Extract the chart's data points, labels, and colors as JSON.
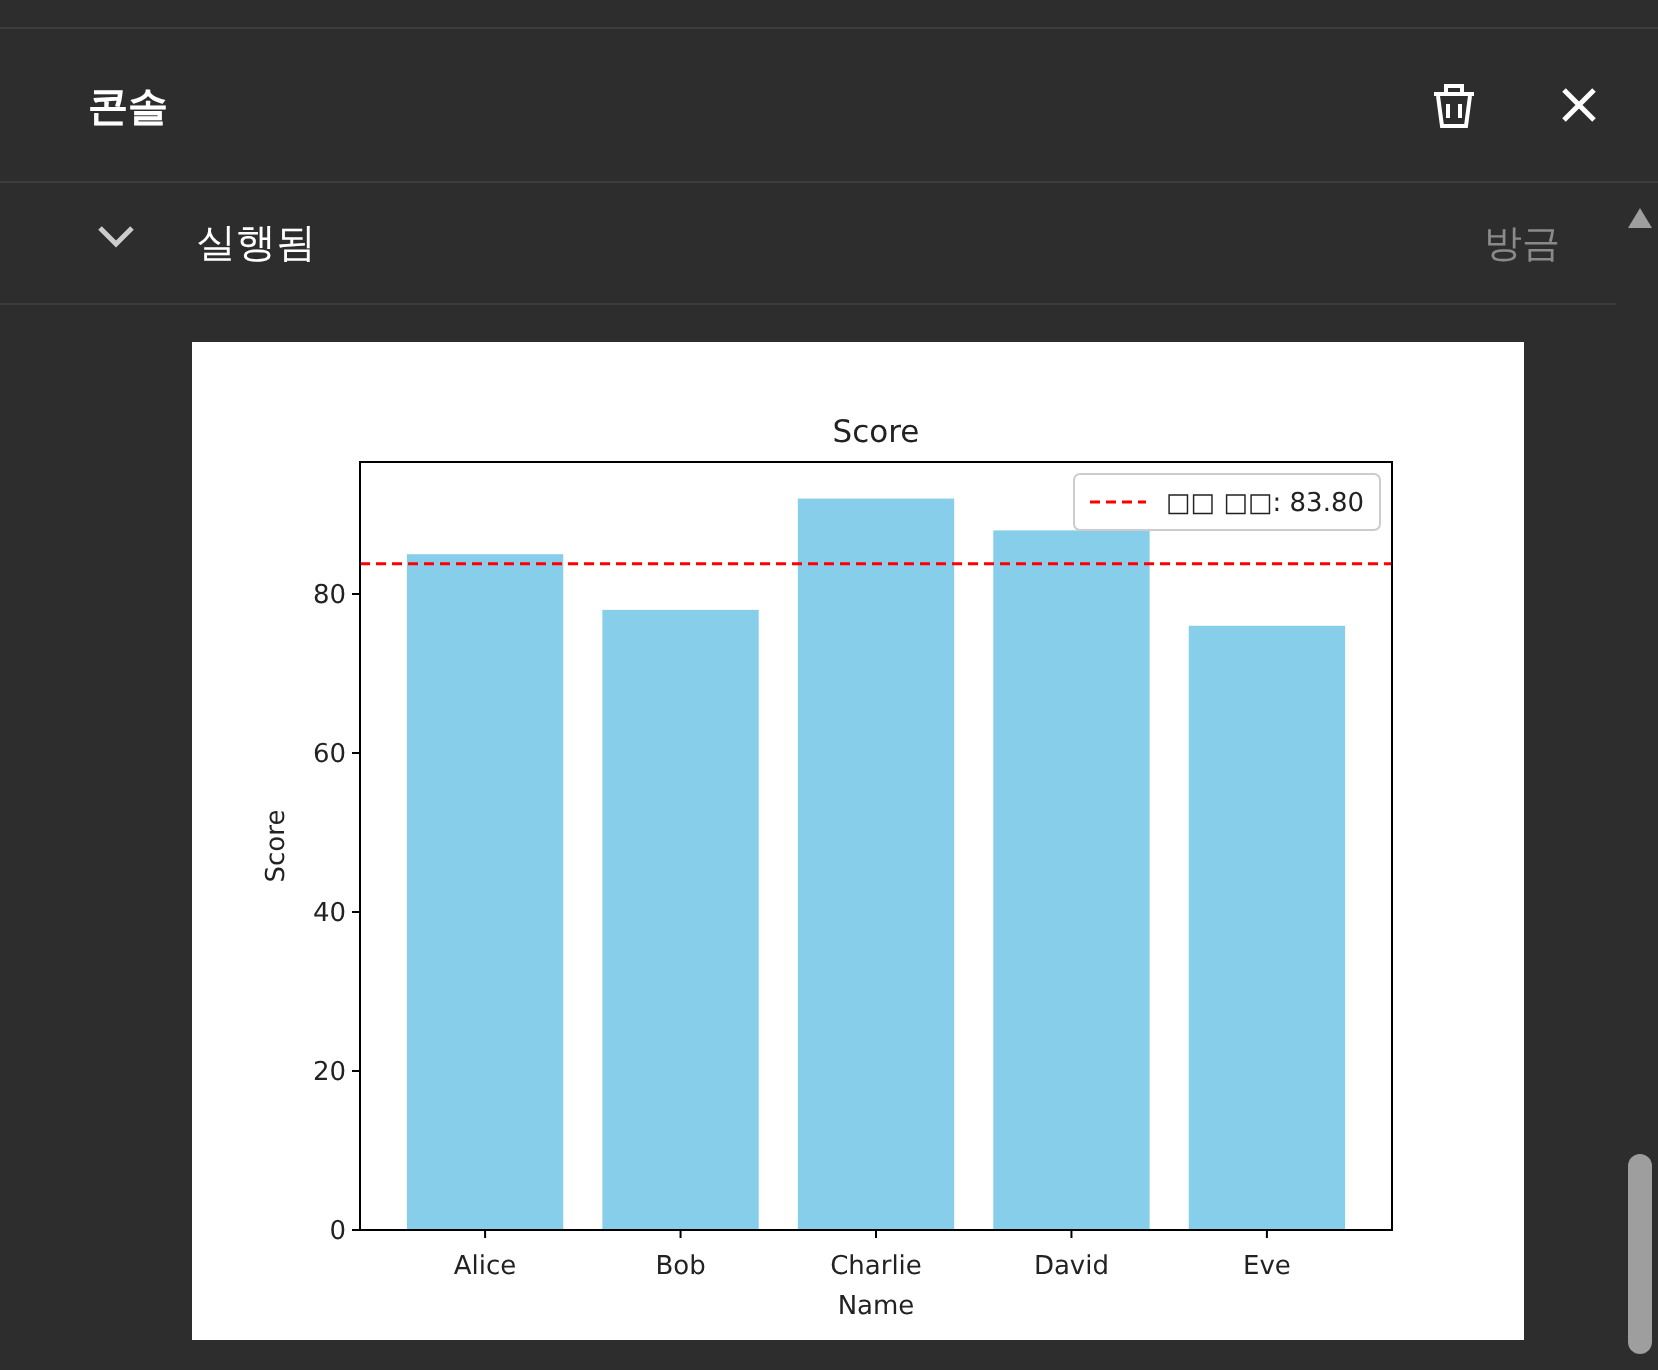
{
  "chart_data": {
    "type": "bar",
    "title": "Score",
    "xlabel": "Name",
    "ylabel": "Score",
    "annotations": [
      "콘솔",
      "실행됨",
      "방금"
    ],
    "categories": [
      "Alice",
      "Bob",
      "Charlie",
      "David",
      "Eve"
    ],
    "values": [
      85,
      78,
      92,
      88,
      76
    ],
    "color": "#87ceeb",
    "ylim": [
      0,
      96.6
    ],
    "yticks": [
      0,
      20,
      40,
      60,
      80
    ],
    "ref_lines": [
      {
        "axis": "y",
        "value": 83.8,
        "label": "□□ □□: 83.80",
        "color": "#ff0000",
        "line_style": "dashed"
      }
    ],
    "legend": "top right",
    "grid": false
  }
}
